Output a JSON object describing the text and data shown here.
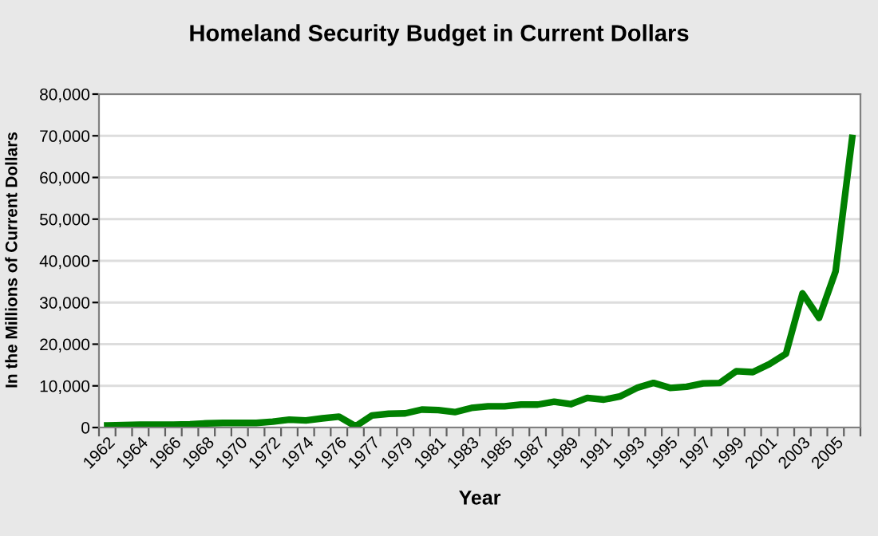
{
  "chart_data": {
    "type": "line",
    "title": "Homeland Security Budget in Current Dollars",
    "xlabel": "Year",
    "ylabel": "In the Millions of Current Dollars",
    "categories": [
      "1962",
      null,
      "1964",
      null,
      "1966",
      null,
      "1968",
      null,
      "1970",
      null,
      "1972",
      null,
      "1974",
      null,
      "1976",
      null,
      "1977",
      null,
      "1979",
      null,
      "1981",
      null,
      "1983",
      null,
      "1985",
      null,
      "1987",
      null,
      "1989",
      null,
      "1991",
      null,
      "1993",
      null,
      "1995",
      null,
      "1997",
      null,
      "1999",
      null,
      "2001",
      null,
      "2003",
      null,
      "2005",
      null
    ],
    "series": [
      {
        "color": "#008000",
        "values": [
          500,
          600,
          700,
          700,
          700,
          800,
          1000,
          1100,
          1100,
          1100,
          1400,
          1900,
          1700,
          2200,
          2600,
          300,
          2900,
          3300,
          3400,
          4300,
          4200,
          3700,
          4700,
          5100,
          5100,
          5500,
          5500,
          6200,
          5600,
          7100,
          6700,
          7500,
          9500,
          10700,
          9500,
          9800,
          10600,
          10700,
          13500,
          13300,
          15200,
          17700,
          32200,
          26300,
          37500,
          69500
        ]
      }
    ],
    "ylim": [
      0,
      80000
    ],
    "yticks": [
      {
        "value": 0,
        "label": "0"
      },
      {
        "value": 10000,
        "label": "10,000"
      },
      {
        "value": 20000,
        "label": "20,000"
      },
      {
        "value": 30000,
        "label": "30,000"
      },
      {
        "value": 40000,
        "label": "40,000"
      },
      {
        "value": 50000,
        "label": "50,000"
      },
      {
        "value": 60000,
        "label": "60,000"
      },
      {
        "value": 70000,
        "label": "70,000"
      },
      {
        "value": 80000,
        "label": "80,000"
      }
    ],
    "grid": "y",
    "legend": false,
    "marker": "none",
    "line_style": "solid"
  }
}
